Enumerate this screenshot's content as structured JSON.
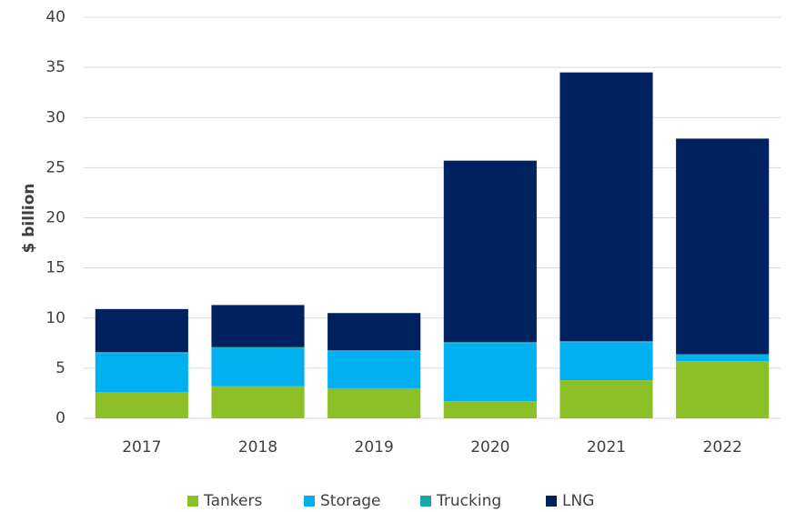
{
  "chart_data": {
    "type": "stacked_bar",
    "y_label": "$ billion",
    "categories": [
      "2017",
      "2018",
      "2019",
      "2020",
      "2021",
      "2022"
    ],
    "series": [
      {
        "name": "Tankers",
        "color": "#8dc026",
        "values": [
          2.6,
          3.2,
          3.0,
          1.7,
          3.8,
          5.7
        ]
      },
      {
        "name": "Storage",
        "color": "#00b0f0",
        "values": [
          3.9,
          3.8,
          3.7,
          5.8,
          3.8,
          0.6
        ]
      },
      {
        "name": "Trucking",
        "color": "#1aa7a7",
        "values": [
          0.1,
          0.1,
          0.1,
          0.1,
          0.1,
          0.1
        ]
      },
      {
        "name": "LNG",
        "color": "#002060",
        "values": [
          4.3,
          4.2,
          3.7,
          18.1,
          26.8,
          21.5
        ]
      }
    ],
    "ylim": [
      0,
      40
    ],
    "yticks": [
      0,
      5,
      10,
      15,
      20,
      25,
      30,
      35,
      40
    ],
    "grid": true,
    "legend": "bottom"
  }
}
